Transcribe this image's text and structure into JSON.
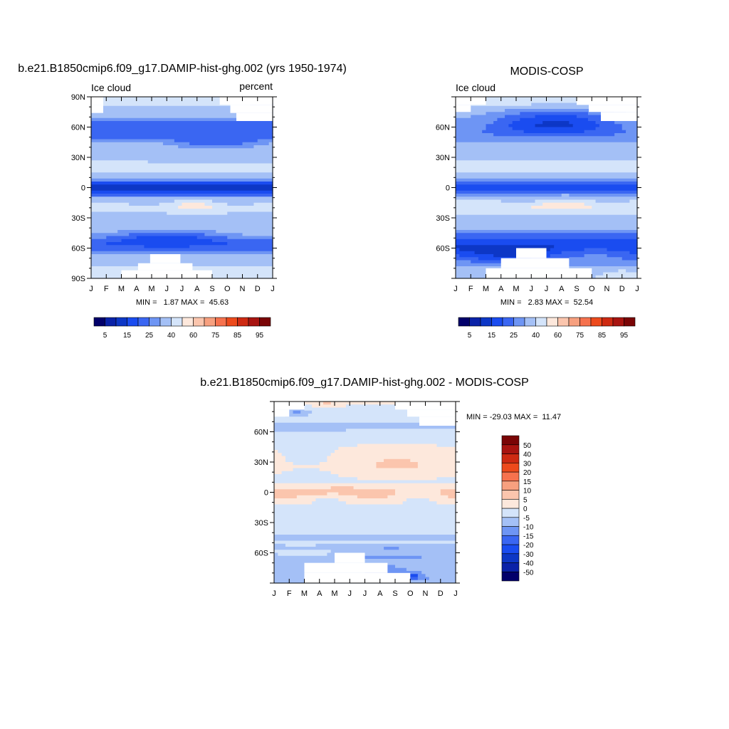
{
  "chart_data": [
    {
      "type": "heatmap",
      "id": "model",
      "title": "b.e21.B1850cmip6.f09_g17.DAMIP-hist-ghg.002 (yrs 1950-1974)",
      "left_label": "Ice cloud",
      "right_label": "percent",
      "x_ticks": [
        "J",
        "F",
        "M",
        "A",
        "M",
        "J",
        "J",
        "A",
        "S",
        "O",
        "N",
        "D",
        "J"
      ],
      "y_ticks": [
        {
          "lat": 90,
          "label": "90N"
        },
        {
          "lat": 60,
          "label": "60N"
        },
        {
          "lat": 30,
          "label": "30N"
        },
        {
          "lat": 0,
          "label": "0"
        },
        {
          "lat": -30,
          "label": "30S"
        },
        {
          "lat": -60,
          "label": "60S"
        },
        {
          "lat": -90,
          "label": "90S"
        }
      ],
      "ylim": [
        -90,
        90
      ],
      "stats": {
        "min": "1.87",
        "max": "45.63",
        "text": "MIN =   1.87 MAX =  45.63"
      },
      "colorbar": {
        "levels": [
          5,
          10,
          15,
          20,
          25,
          30,
          40,
          50,
          60,
          70,
          75,
          80,
          85,
          90,
          95
        ],
        "labels": [
          "5",
          "15",
          "25",
          "40",
          "60",
          "75",
          "85",
          "95"
        ],
        "colors": [
          "#02006a",
          "#0a22a8",
          "#0d37c6",
          "#1a4cf0",
          "#3a66f2",
          "#6e95f4",
          "#a4c0f6",
          "#d4e4fa",
          "#fde8dc",
          "#fbc5ad",
          "#f7a07f",
          "#f6724e",
          "#ed4a1c",
          "#ce2a12",
          "#a81410",
          "#7a0506"
        ]
      },
      "missing_spans": [
        {
          "lat": [
            82,
            90
          ],
          "months": [
            [
              0,
              0.8
            ],
            [
              8.5,
              12
            ]
          ]
        },
        {
          "lat": [
            74,
            82
          ],
          "months": [
            [
              0,
              0.8
            ],
            [
              9.2,
              12
            ]
          ]
        },
        {
          "lat": [
            66,
            74
          ],
          "months": [
            [
              9.6,
              12
            ]
          ]
        },
        {
          "lat": [
            -75,
            -66
          ],
          "months": [
            [
              3.9,
              5.9
            ]
          ]
        },
        {
          "lat": [
            -82,
            -75
          ],
          "months": [
            [
              3.1,
              6.7
            ]
          ]
        },
        {
          "lat": [
            -90,
            -82
          ],
          "months": [
            [
              2,
              8
            ]
          ]
        }
      ],
      "field": {
        "base": [
          [
            90,
            44
          ],
          [
            85,
            42
          ],
          [
            78,
            36
          ],
          [
            70,
            30
          ],
          [
            62,
            22
          ],
          [
            55,
            20
          ],
          [
            48,
            24
          ],
          [
            40,
            32
          ],
          [
            35,
            38
          ],
          [
            30,
            36
          ],
          [
            22,
            43
          ],
          [
            15,
            40
          ],
          [
            10,
            32
          ],
          [
            5,
            20
          ],
          [
            0,
            12
          ],
          [
            -5,
            18
          ],
          [
            -10,
            30
          ],
          [
            -15,
            40
          ],
          [
            -20,
            44
          ],
          [
            -25,
            40
          ],
          [
            -30,
            36
          ],
          [
            -35,
            38
          ],
          [
            -40,
            34
          ],
          [
            -45,
            28
          ],
          [
            -50,
            22
          ],
          [
            -55,
            18
          ],
          [
            -60,
            22
          ],
          [
            -65,
            30
          ],
          [
            -70,
            36
          ],
          [
            -78,
            40
          ],
          [
            -85,
            42
          ],
          [
            -90,
            44
          ]
        ],
        "waves": [
          {
            "lat": [
              35,
              50
            ],
            "amp": 6,
            "cycles": 1,
            "phase": 0.4
          },
          {
            "lat": [
              -60,
              -40
            ],
            "amp": 5,
            "cycles": 1,
            "phase": 2.1
          },
          {
            "lat": [
              -25,
              -10
            ],
            "amp": 4,
            "cycles": 2,
            "phase": 0.9
          }
        ],
        "blobs": [
          {
            "lat": -18,
            "month": 7,
            "dlat": 6,
            "dmonth": 1.6,
            "amp": 8
          },
          {
            "lat": 88,
            "month": 5,
            "dlat": 8,
            "dmonth": 3,
            "amp": 6
          },
          {
            "lat": 20,
            "month": 1,
            "dlat": 5,
            "dmonth": 1.5,
            "amp": 5
          }
        ]
      }
    },
    {
      "type": "heatmap",
      "id": "obs",
      "title": "MODIS-COSP",
      "left_label": "Ice cloud",
      "x_ticks": [
        "J",
        "F",
        "M",
        "A",
        "M",
        "J",
        "J",
        "A",
        "S",
        "O",
        "N",
        "D",
        "J"
      ],
      "y_ticks": [
        {
          "lat": 60,
          "label": "60N"
        },
        {
          "lat": 30,
          "label": "30N"
        },
        {
          "lat": 0,
          "label": "0"
        },
        {
          "lat": -30,
          "label": "30S"
        },
        {
          "lat": -60,
          "label": "60S"
        }
      ],
      "ylim": [
        -90,
        90
      ],
      "stats": {
        "min": "2.83",
        "max": "52.54",
        "text": "MIN =   2.83 MAX =  52.54"
      },
      "colorbar": {
        "levels": [
          5,
          10,
          15,
          20,
          25,
          30,
          40,
          50,
          60,
          70,
          75,
          80,
          85,
          90,
          95
        ],
        "labels": [
          "5",
          "15",
          "25",
          "40",
          "60",
          "75",
          "85",
          "95"
        ],
        "colors": [
          "#02006a",
          "#0a22a8",
          "#0d37c6",
          "#1a4cf0",
          "#3a66f2",
          "#6e95f4",
          "#a4c0f6",
          "#d4e4fa",
          "#fde8dc",
          "#fbc5ad",
          "#f7a07f",
          "#f6724e",
          "#ed4a1c",
          "#ce2a12",
          "#a81410",
          "#7a0506"
        ]
      },
      "missing_spans": [
        {
          "lat": [
            82,
            90
          ],
          "months": [
            [
              0,
              2
            ],
            [
              8,
              12
            ]
          ]
        },
        {
          "lat": [
            75,
            82
          ],
          "months": [
            [
              0,
              1
            ],
            [
              8.8,
              12
            ]
          ]
        },
        {
          "lat": [
            66,
            75
          ],
          "months": [
            [
              9.6,
              12
            ]
          ]
        },
        {
          "lat": [
            -70,
            -60
          ],
          "months": [
            [
              4,
              6
            ]
          ]
        },
        {
          "lat": [
            -80,
            -70
          ],
          "months": [
            [
              3,
              7.5
            ]
          ]
        },
        {
          "lat": [
            -90,
            -80
          ],
          "months": [
            [
              2,
              9
            ]
          ]
        }
      ],
      "field": {
        "base": [
          [
            90,
            44
          ],
          [
            84,
            40
          ],
          [
            78,
            30
          ],
          [
            70,
            24
          ],
          [
            62,
            20
          ],
          [
            55,
            22
          ],
          [
            48,
            28
          ],
          [
            40,
            36
          ],
          [
            35,
            40
          ],
          [
            30,
            38
          ],
          [
            22,
            45
          ],
          [
            15,
            42
          ],
          [
            10,
            34
          ],
          [
            5,
            24
          ],
          [
            0,
            16
          ],
          [
            -5,
            22
          ],
          [
            -10,
            34
          ],
          [
            -15,
            44
          ],
          [
            -20,
            48
          ],
          [
            -25,
            44
          ],
          [
            -30,
            38
          ],
          [
            -35,
            36
          ],
          [
            -40,
            32
          ],
          [
            -45,
            26
          ],
          [
            -50,
            20
          ],
          [
            -55,
            16
          ],
          [
            -60,
            14
          ],
          [
            -65,
            18
          ],
          [
            -70,
            22
          ],
          [
            -78,
            30
          ],
          [
            -85,
            36
          ],
          [
            -90,
            40
          ]
        ],
        "waves": [
          {
            "lat": [
              50,
              80
            ],
            "amp": 7,
            "cycles": 1,
            "phase": 1.3
          },
          {
            "lat": [
              -75,
              -55
            ],
            "amp": 6,
            "cycles": 1,
            "phase": 3.0
          },
          {
            "lat": [
              -20,
              -5
            ],
            "amp": 4,
            "cycles": 2,
            "phase": 0.2
          }
        ],
        "blobs": [
          {
            "lat": -18,
            "month": 7,
            "dlat": 5,
            "dmonth": 2,
            "amp": 8
          },
          {
            "lat": 85,
            "month": 3,
            "dlat": 6,
            "dmonth": 2.5,
            "amp": 6
          },
          {
            "lat": -85,
            "month": 11,
            "dlat": 5,
            "dmonth": 1.5,
            "amp": 8
          }
        ]
      }
    },
    {
      "type": "heatmap",
      "id": "diff",
      "title": "b.e21.B1850cmip6.f09_g17.DAMIP-hist-ghg.002 - MODIS-COSP",
      "x_ticks": [
        "J",
        "F",
        "M",
        "A",
        "M",
        "J",
        "J",
        "A",
        "S",
        "O",
        "N",
        "D",
        "J"
      ],
      "y_ticks": [
        {
          "lat": 60,
          "label": "60N"
        },
        {
          "lat": 30,
          "label": "30N"
        },
        {
          "lat": 0,
          "label": "0"
        },
        {
          "lat": -30,
          "label": "30S"
        },
        {
          "lat": -60,
          "label": "60S"
        }
      ],
      "ylim": [
        -90,
        90
      ],
      "stats": {
        "min": "-29.03",
        "max": "11.47",
        "text": "MIN = -29.03 MAX =  11.47"
      },
      "colorbar": {
        "levels": [
          -50,
          -40,
          -30,
          -20,
          -15,
          -10,
          -5,
          0,
          5,
          10,
          15,
          20,
          30,
          40,
          50
        ],
        "labels": [
          "-50",
          "-40",
          "-30",
          "-20",
          "-15",
          "-10",
          "-5",
          "0",
          "5",
          "10",
          "15",
          "20",
          "30",
          "40",
          "50"
        ],
        "colors": [
          "#02006a",
          "#0a22a8",
          "#0d37c6",
          "#1a4cf0",
          "#3a66f2",
          "#6e95f4",
          "#a4c0f6",
          "#d4e4fa",
          "#fde8dc",
          "#fbc5ad",
          "#f7a07f",
          "#f6724e",
          "#ed4a1c",
          "#ce2a12",
          "#a81410",
          "#7a0506"
        ]
      },
      "missing_spans": [
        {
          "lat": [
            82,
            90
          ],
          "months": [
            [
              0,
              2
            ],
            [
              8,
              12
            ]
          ]
        },
        {
          "lat": [
            75,
            82
          ],
          "months": [
            [
              0,
              1
            ],
            [
              8.8,
              12
            ]
          ]
        },
        {
          "lat": [
            66,
            75
          ],
          "months": [
            [
              9.6,
              12
            ]
          ]
        },
        {
          "lat": [
            -70,
            -60
          ],
          "months": [
            [
              4,
              6
            ]
          ]
        },
        {
          "lat": [
            -80,
            -70
          ],
          "months": [
            [
              2,
              7.5
            ]
          ]
        },
        {
          "lat": [
            -90,
            -80
          ],
          "months": [
            [
              2,
              9
            ]
          ]
        }
      ],
      "field": {
        "base": [
          [
            90,
            1
          ],
          [
            80,
            -3
          ],
          [
            72,
            -4
          ],
          [
            65,
            -6
          ],
          [
            58,
            -4
          ],
          [
            50,
            -1
          ],
          [
            42,
            1
          ],
          [
            35,
            2
          ],
          [
            25,
            3
          ],
          [
            18,
            1
          ],
          [
            10,
            -1
          ],
          [
            5,
            3
          ],
          [
            0,
            6
          ],
          [
            -5,
            3
          ],
          [
            -10,
            1
          ],
          [
            -15,
            -2
          ],
          [
            -20,
            -2
          ],
          [
            -30,
            -3
          ],
          [
            -40,
            -4
          ],
          [
            -45,
            -6
          ],
          [
            -50,
            -4
          ],
          [
            -55,
            -8
          ],
          [
            -60,
            -6
          ],
          [
            -65,
            -9
          ],
          [
            -70,
            -7
          ],
          [
            -78,
            -8
          ],
          [
            -85,
            -10
          ],
          [
            -90,
            -8
          ]
        ],
        "waves": [
          {
            "lat": [
              10,
              50
            ],
            "amp": 3,
            "cycles": 1,
            "phase": 3.6
          },
          {
            "lat": [
              -15,
              5
            ],
            "amp": 3,
            "cycles": 2,
            "phase": 1.0
          },
          {
            "lat": [
              -70,
              -50
            ],
            "amp": 3,
            "cycles": 1,
            "phase": 0.6
          }
        ],
        "blobs": [
          {
            "lat": 0,
            "month": 2.5,
            "dlat": 3,
            "dmonth": 1.2,
            "amp": 5
          },
          {
            "lat": 2,
            "month": 4.5,
            "dlat": 3,
            "dmonth": 1.2,
            "amp": 5
          },
          {
            "lat": -83,
            "month": 9,
            "dlat": 3,
            "dmonth": 0.6,
            "amp": -16
          },
          {
            "lat": -78,
            "month": 7.5,
            "dlat": 5,
            "dmonth": 1.2,
            "amp": -7
          },
          {
            "lat": 80,
            "month": 1.5,
            "dlat": 4,
            "dmonth": 0.8,
            "amp": -8
          },
          {
            "lat": 88,
            "month": 3.5,
            "dlat": 3,
            "dmonth": 1.2,
            "amp": 5
          }
        ]
      }
    }
  ]
}
